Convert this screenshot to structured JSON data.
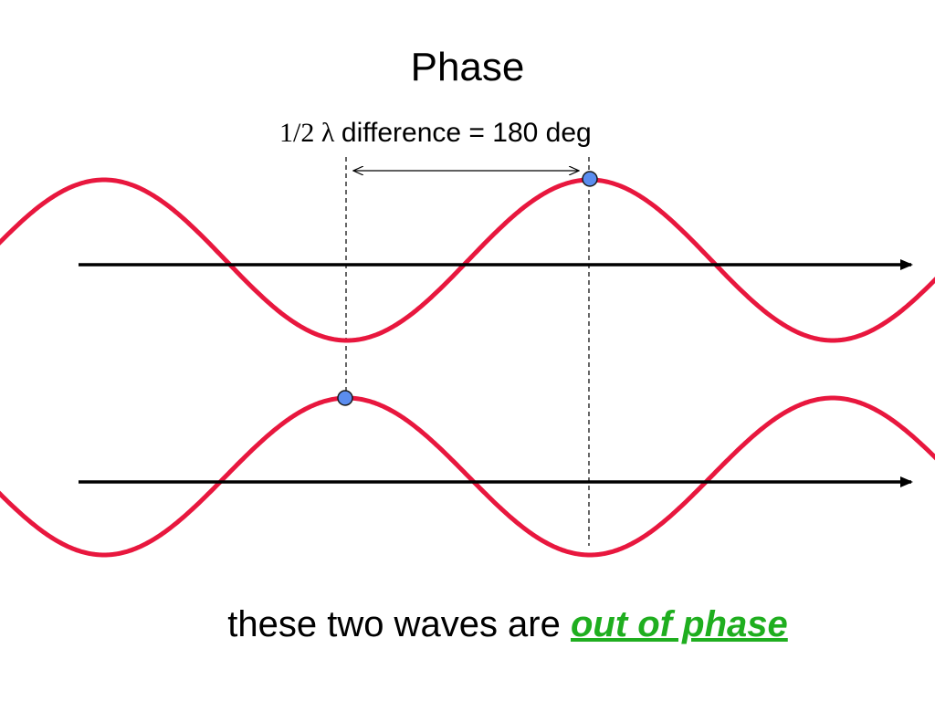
{
  "title": "Phase",
  "annotation": {
    "fraction": "1/2",
    "lambda": "λ",
    "text": "difference = 180 deg"
  },
  "caption": {
    "prefix": "these two waves are ",
    "emphasis": "out of phase"
  },
  "colors": {
    "wave": "#e8173e",
    "axis": "#000000",
    "marker_fill": "#5b8def",
    "marker_stroke": "#1a1a1a",
    "emphasis": "#1fae1f"
  },
  "icons": {
    "marker": "circle-marker-icon",
    "arrowhead": "arrowhead-icon"
  }
}
